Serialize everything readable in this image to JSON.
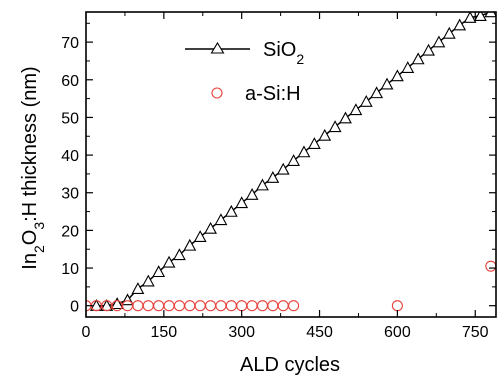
{
  "chart_data": {
    "type": "scatter",
    "xlabel": "ALD cycles",
    "ylabel": "In2O3:H thickness (nm)",
    "ylabel_parts": [
      "In",
      "2",
      "O",
      "3",
      ":H thickness (nm)"
    ],
    "xlim": [
      0,
      790
    ],
    "ylim": [
      -3,
      78
    ],
    "xticks": [
      0,
      150,
      300,
      450,
      600,
      750
    ],
    "yticks": [
      0,
      10,
      20,
      30,
      40,
      50,
      60,
      70
    ],
    "grid": false,
    "legend_position": "top-left",
    "series": [
      {
        "name": "SiO2",
        "name_parts": [
          "SiO",
          "2"
        ],
        "marker": "triangle",
        "line": true,
        "color": "#000000",
        "x": [
          20,
          40,
          60,
          80,
          100,
          120,
          140,
          160,
          180,
          200,
          220,
          240,
          260,
          280,
          300,
          320,
          340,
          360,
          380,
          400,
          420,
          440,
          460,
          480,
          500,
          520,
          540,
          560,
          580,
          600,
          620,
          640,
          660,
          680,
          700,
          720,
          740,
          760,
          780
        ],
        "y": [
          0,
          0,
          0.5,
          1.5,
          4.5,
          6.5,
          9,
          11.5,
          13.5,
          16,
          18.3,
          20.5,
          22.8,
          25,
          27.3,
          29.5,
          32,
          34,
          36.2,
          38.5,
          40.8,
          43,
          45.2,
          47.5,
          49.8,
          52,
          54.2,
          56.5,
          58.8,
          61,
          63.2,
          65.5,
          67.8,
          70,
          72.3,
          74.5,
          76.5,
          77,
          78
        ]
      },
      {
        "name": "a-Si:H",
        "marker": "circle",
        "line": false,
        "color": "#e8423b",
        "x": [
          0,
          20,
          40,
          60,
          80,
          100,
          120,
          140,
          160,
          180,
          200,
          220,
          240,
          260,
          280,
          300,
          320,
          340,
          360,
          380,
          400,
          600,
          780
        ],
        "y": [
          0,
          0,
          0,
          0,
          0,
          0,
          0,
          0,
          0,
          0,
          0,
          0,
          0,
          0,
          0,
          0,
          0,
          0,
          0,
          0,
          0,
          0,
          10.5
        ]
      }
    ]
  }
}
